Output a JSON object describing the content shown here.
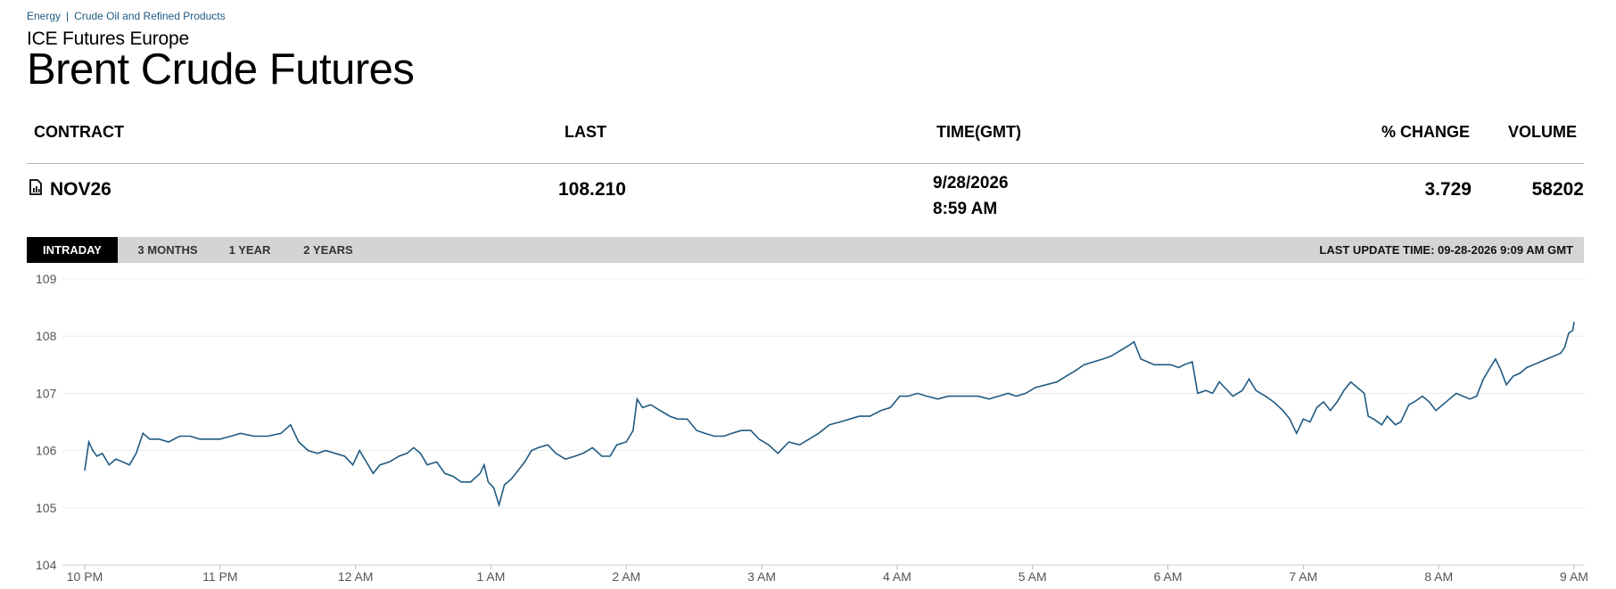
{
  "breadcrumb": {
    "category": "Energy",
    "separator": "|",
    "subcategory": "Crude Oil and Refined Products"
  },
  "exchange": "ICE Futures Europe",
  "title": "Brent Crude Futures",
  "table": {
    "headers": {
      "contract": "CONTRACT",
      "last": "LAST",
      "time": "TIME(GMT)",
      "change": "% CHANGE",
      "volume": "VOLUME"
    },
    "row": {
      "contract": "NOV26",
      "last": "108.210",
      "date": "9/28/2026",
      "time": "8:59 AM",
      "change": "3.729",
      "volume": "58202"
    }
  },
  "tabs": [
    "INTRADAY",
    "3 MONTHS",
    "1 YEAR",
    "2 YEARS"
  ],
  "active_tab": "INTRADAY",
  "last_update": "LAST UPDATE TIME: 09-28-2026 9:09 AM GMT",
  "icons": {
    "contract_icon": "chart-document-icon"
  },
  "colors": {
    "line": "#1f5a82",
    "tab_active_bg": "#000000",
    "tabbar_bg": "#d4d4d4",
    "link": "#1f5a82"
  },
  "chart_data": {
    "type": "line",
    "title": "",
    "xlabel": "",
    "ylabel": "",
    "ylim": [
      104,
      109
    ],
    "yticks": [
      109,
      108,
      107,
      106,
      105,
      104
    ],
    "xlim": [
      0,
      11
    ],
    "xticks": [
      {
        "x": 0,
        "label": "10 PM"
      },
      {
        "x": 1,
        "label": "11 PM"
      },
      {
        "x": 2,
        "label": "12 AM"
      },
      {
        "x": 3,
        "label": "1 AM"
      },
      {
        "x": 4,
        "label": "2 AM"
      },
      {
        "x": 5,
        "label": "3 AM"
      },
      {
        "x": 6,
        "label": "4 AM"
      },
      {
        "x": 7,
        "label": "5 AM"
      },
      {
        "x": 8,
        "label": "6 AM"
      },
      {
        "x": 9,
        "label": "7 AM"
      },
      {
        "x": 10,
        "label": "8 AM"
      },
      {
        "x": 11,
        "label": "9 AM"
      }
    ],
    "grid": true,
    "series": [
      {
        "points": [
          [
            0.0,
            105.65
          ],
          [
            0.03,
            106.15
          ],
          [
            0.06,
            106.0
          ],
          [
            0.09,
            105.9
          ],
          [
            0.13,
            105.95
          ],
          [
            0.18,
            105.75
          ],
          [
            0.23,
            105.85
          ],
          [
            0.28,
            105.8
          ],
          [
            0.33,
            105.75
          ],
          [
            0.38,
            105.95
          ],
          [
            0.43,
            106.3
          ],
          [
            0.48,
            106.2
          ],
          [
            0.55,
            106.2
          ],
          [
            0.62,
            106.15
          ],
          [
            0.7,
            106.25
          ],
          [
            0.78,
            106.25
          ],
          [
            0.85,
            106.2
          ],
          [
            0.92,
            106.2
          ],
          [
            1.0,
            106.2
          ],
          [
            1.08,
            106.25
          ],
          [
            1.15,
            106.3
          ],
          [
            1.25,
            106.25
          ],
          [
            1.35,
            106.25
          ],
          [
            1.45,
            106.3
          ],
          [
            1.52,
            106.45
          ],
          [
            1.58,
            106.15
          ],
          [
            1.65,
            106.0
          ],
          [
            1.72,
            105.95
          ],
          [
            1.78,
            106.0
          ],
          [
            1.85,
            105.95
          ],
          [
            1.92,
            105.9
          ],
          [
            1.98,
            105.75
          ],
          [
            2.03,
            106.0
          ],
          [
            2.08,
            105.8
          ],
          [
            2.13,
            105.6
          ],
          [
            2.18,
            105.75
          ],
          [
            2.25,
            105.8
          ],
          [
            2.32,
            105.9
          ],
          [
            2.38,
            105.95
          ],
          [
            2.43,
            106.05
          ],
          [
            2.48,
            105.95
          ],
          [
            2.53,
            105.75
          ],
          [
            2.6,
            105.8
          ],
          [
            2.66,
            105.6
          ],
          [
            2.72,
            105.55
          ],
          [
            2.78,
            105.45
          ],
          [
            2.85,
            105.45
          ],
          [
            2.92,
            105.6
          ],
          [
            2.95,
            105.75
          ],
          [
            2.98,
            105.45
          ],
          [
            3.02,
            105.35
          ],
          [
            3.06,
            105.05
          ],
          [
            3.1,
            105.4
          ],
          [
            3.15,
            105.5
          ],
          [
            3.2,
            105.65
          ],
          [
            3.25,
            105.8
          ],
          [
            3.3,
            106.0
          ],
          [
            3.35,
            106.05
          ],
          [
            3.42,
            106.1
          ],
          [
            3.48,
            105.95
          ],
          [
            3.55,
            105.85
          ],
          [
            3.62,
            105.9
          ],
          [
            3.68,
            105.95
          ],
          [
            3.75,
            106.05
          ],
          [
            3.82,
            105.9
          ],
          [
            3.88,
            105.9
          ],
          [
            3.93,
            106.1
          ],
          [
            4.0,
            106.15
          ],
          [
            4.05,
            106.35
          ],
          [
            4.08,
            106.9
          ],
          [
            4.12,
            106.75
          ],
          [
            4.18,
            106.8
          ],
          [
            4.25,
            106.7
          ],
          [
            4.32,
            106.6
          ],
          [
            4.38,
            106.55
          ],
          [
            4.45,
            106.55
          ],
          [
            4.52,
            106.35
          ],
          [
            4.58,
            106.3
          ],
          [
            4.65,
            106.25
          ],
          [
            4.72,
            106.25
          ],
          [
            4.78,
            106.3
          ],
          [
            4.85,
            106.35
          ],
          [
            4.92,
            106.35
          ],
          [
            4.98,
            106.2
          ],
          [
            5.05,
            106.1
          ],
          [
            5.12,
            105.95
          ],
          [
            5.2,
            106.15
          ],
          [
            5.28,
            106.1
          ],
          [
            5.35,
            106.2
          ],
          [
            5.42,
            106.3
          ],
          [
            5.5,
            106.45
          ],
          [
            5.58,
            106.5
          ],
          [
            5.65,
            106.55
          ],
          [
            5.72,
            106.6
          ],
          [
            5.8,
            106.6
          ],
          [
            5.88,
            106.7
          ],
          [
            5.95,
            106.75
          ],
          [
            6.02,
            106.95
          ],
          [
            6.08,
            106.95
          ],
          [
            6.15,
            107.0
          ],
          [
            6.22,
            106.95
          ],
          [
            6.3,
            106.9
          ],
          [
            6.38,
            106.95
          ],
          [
            6.45,
            106.95
          ],
          [
            6.52,
            106.95
          ],
          [
            6.6,
            106.95
          ],
          [
            6.68,
            106.9
          ],
          [
            6.75,
            106.95
          ],
          [
            6.82,
            107.0
          ],
          [
            6.88,
            106.95
          ],
          [
            6.95,
            107.0
          ],
          [
            7.02,
            107.1
          ],
          [
            7.1,
            107.15
          ],
          [
            7.18,
            107.2
          ],
          [
            7.25,
            107.3
          ],
          [
            7.32,
            107.4
          ],
          [
            7.38,
            107.5
          ],
          [
            7.45,
            107.55
          ],
          [
            7.52,
            107.6
          ],
          [
            7.58,
            107.65
          ],
          [
            7.65,
            107.75
          ],
          [
            7.72,
            107.85
          ],
          [
            7.75,
            107.9
          ],
          [
            7.8,
            107.6
          ],
          [
            7.85,
            107.55
          ],
          [
            7.9,
            107.5
          ],
          [
            7.95,
            107.5
          ],
          [
            8.02,
            107.5
          ],
          [
            8.08,
            107.45
          ],
          [
            8.12,
            107.5
          ],
          [
            8.18,
            107.55
          ],
          [
            8.22,
            107.0
          ],
          [
            8.28,
            107.05
          ],
          [
            8.33,
            107.0
          ],
          [
            8.38,
            107.2
          ],
          [
            8.42,
            107.1
          ],
          [
            8.48,
            106.95
          ],
          [
            8.55,
            107.05
          ],
          [
            8.6,
            107.25
          ],
          [
            8.65,
            107.05
          ],
          [
            8.72,
            106.95
          ],
          [
            8.78,
            106.85
          ],
          [
            8.85,
            106.7
          ],
          [
            8.9,
            106.55
          ],
          [
            8.95,
            106.3
          ],
          [
            9.0,
            106.55
          ],
          [
            9.05,
            106.5
          ],
          [
            9.1,
            106.75
          ],
          [
            9.15,
            106.85
          ],
          [
            9.2,
            106.7
          ],
          [
            9.25,
            106.85
          ],
          [
            9.3,
            107.05
          ],
          [
            9.35,
            107.2
          ],
          [
            9.4,
            107.1
          ],
          [
            9.45,
            107.0
          ],
          [
            9.48,
            106.6
          ],
          [
            9.52,
            106.55
          ],
          [
            9.58,
            106.45
          ],
          [
            9.62,
            106.6
          ],
          [
            9.68,
            106.45
          ],
          [
            9.72,
            106.5
          ],
          [
            9.78,
            106.8
          ],
          [
            9.82,
            106.85
          ],
          [
            9.88,
            106.95
          ],
          [
            9.93,
            106.85
          ],
          [
            9.98,
            106.7
          ],
          [
            10.03,
            106.8
          ],
          [
            10.08,
            106.9
          ],
          [
            10.13,
            107.0
          ],
          [
            10.18,
            106.95
          ],
          [
            10.23,
            106.9
          ],
          [
            10.28,
            106.95
          ],
          [
            10.33,
            107.25
          ],
          [
            10.38,
            107.45
          ],
          [
            10.42,
            107.6
          ],
          [
            10.46,
            107.4
          ],
          [
            10.5,
            107.15
          ],
          [
            10.55,
            107.3
          ],
          [
            10.6,
            107.35
          ],
          [
            10.65,
            107.45
          ],
          [
            10.7,
            107.5
          ],
          [
            10.75,
            107.55
          ],
          [
            10.8,
            107.6
          ],
          [
            10.85,
            107.65
          ],
          [
            10.9,
            107.7
          ],
          [
            10.93,
            107.8
          ],
          [
            10.96,
            108.05
          ],
          [
            10.99,
            108.1
          ],
          [
            11.0,
            108.25
          ]
        ]
      }
    ]
  }
}
